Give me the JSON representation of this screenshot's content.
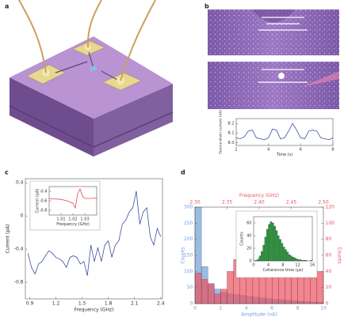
{
  "panel_labels": [
    "a",
    "b",
    "c",
    "d"
  ],
  "chart_data": [
    {
      "type": "line",
      "xlabel": "Time (s)",
      "ylabel": "Source-drain current (nA)",
      "color": "#3a4fa0",
      "x": [
        2,
        2.25,
        2.5,
        2.75,
        3,
        3.25,
        3.5,
        3.75,
        4,
        4.25,
        4.5,
        4.75,
        5,
        5.25,
        5.5,
        5.75,
        6,
        6.25,
        6.5,
        6.75,
        7,
        7.25,
        7.5,
        7.75,
        8
      ],
      "values": [
        8.05,
        8.04,
        8.06,
        8.12,
        8.13,
        8.05,
        8.04,
        8.03,
        8.05,
        8.14,
        8.13,
        8.04,
        8.05,
        8.12,
        8.2,
        8.13,
        8.05,
        8.04,
        8.12,
        8.13,
        8.12,
        8.05,
        8.04,
        8.03,
        8.05
      ],
      "xlim": [
        2,
        8
      ],
      "xticks": [
        2,
        4,
        6,
        8
      ],
      "ylim": [
        7.97,
        8.25
      ],
      "yticks": [
        {
          "value": 8,
          "label": "8.0"
        },
        8.1,
        8.2
      ]
    },
    {
      "type": "line",
      "xlabel": "Frequency (GHz)",
      "ylabel": "Current (pA)",
      "color": "#3a4fa0",
      "x": [
        0.88,
        0.92,
        0.96,
        1.0,
        1.04,
        1.08,
        1.12,
        1.16,
        1.2,
        1.24,
        1.28,
        1.32,
        1.36,
        1.4,
        1.44,
        1.48,
        1.52,
        1.56,
        1.6,
        1.64,
        1.68,
        1.72,
        1.76,
        1.8,
        1.84,
        1.88,
        1.92,
        1.96,
        2.0,
        2.04,
        2.08,
        2.12,
        2.16,
        2.2,
        2.24,
        2.28,
        2.32,
        2.36,
        2.4
      ],
      "values": [
        -0.45,
        -0.62,
        -0.7,
        -0.58,
        -0.55,
        -0.48,
        -0.42,
        -0.45,
        -0.5,
        -0.52,
        -0.55,
        -0.62,
        -0.5,
        -0.48,
        -0.5,
        -0.58,
        -0.55,
        -0.72,
        -0.35,
        -0.55,
        -0.38,
        -0.55,
        -0.35,
        -0.3,
        -0.5,
        -0.35,
        -0.3,
        -0.1,
        -0.05,
        0.05,
        0.1,
        0.3,
        -0.1,
        0.05,
        0.1,
        -0.25,
        -0.35,
        -0.15,
        -0.25
      ],
      "xlim": [
        0.85,
        2.42
      ],
      "xticks": [
        0.9,
        1.2,
        1.5,
        1.8,
        2.1,
        2.4
      ],
      "ylim": [
        -1.0,
        0.45
      ],
      "yticks": [
        -0.8,
        -0.4,
        0,
        0.4
      ]
    },
    {
      "type": "line",
      "xlabel": "Frequency (GHz)",
      "ylabel": "Current (pA)",
      "color": "#e8434f",
      "x": [
        1.0,
        1.005,
        1.01,
        1.015,
        1.02,
        1.022,
        1.024,
        1.026,
        1.028,
        1.03,
        1.035,
        1.04
      ],
      "values": [
        -0.55,
        -0.56,
        -0.57,
        -0.6,
        -0.65,
        -0.75,
        -0.45,
        -0.35,
        -0.5,
        -0.55,
        -0.55,
        -0.54
      ],
      "xlim": [
        1.0,
        1.04
      ],
      "xticks": [
        1.01,
        1.02,
        1.03
      ],
      "ylim": [
        -0.9,
        -0.3
      ],
      "yticks": [
        -0.8,
        -0.6,
        -0.4
      ]
    },
    {
      "type": "histogram",
      "xlabel": "Amplitude (nA)",
      "x2label": "Frequency (GHz)",
      "ylabel": "Counts",
      "y2label": "Counts",
      "series": [
        {
          "color": "#6f9fd8",
          "bins": [
            0,
            0.5,
            1,
            1.5,
            2,
            2.5,
            3,
            3.5,
            4,
            4.5,
            5,
            5.5,
            6,
            6.5,
            7,
            7.5,
            8,
            8.5,
            9,
            9.5,
            10
          ],
          "values": [
            300,
            115,
            60,
            45,
            35,
            30,
            28,
            25,
            22,
            20,
            18,
            15,
            13,
            12,
            10,
            9,
            7,
            6,
            5,
            4
          ]
        },
        {
          "color": "#f0505f",
          "axis": "y2",
          "xaxis": "x2",
          "bins": [
            2.3,
            2.31,
            2.32,
            2.33,
            2.34,
            2.35,
            2.36,
            2.37,
            2.38,
            2.39,
            2.4,
            2.41,
            2.42,
            2.43,
            2.44,
            2.45,
            2.46,
            2.47,
            2.48,
            2.49,
            2.5
          ],
          "values": [
            38,
            30,
            25,
            12,
            18,
            40,
            55,
            50,
            48,
            52,
            58,
            62,
            48,
            38,
            42,
            55,
            45,
            35,
            50,
            40
          ]
        }
      ],
      "xlim": [
        0,
        10
      ],
      "xticks": [
        0,
        2,
        4,
        6,
        8,
        10
      ],
      "x2lim": [
        2.3,
        2.5
      ],
      "x2ticks": [
        {
          "value": 2.3,
          "label": "2.30"
        },
        2.35,
        {
          "value": 2.4,
          "label": "2.40"
        },
        2.45,
        {
          "value": 2.5,
          "label": "2.50"
        }
      ],
      "ylim": [
        0,
        300
      ],
      "yticks": [
        0,
        50,
        100,
        150,
        200,
        250,
        300
      ],
      "y2lim": [
        0,
        120
      ],
      "y2ticks": [
        0,
        20,
        40,
        60,
        80,
        100,
        120
      ]
    },
    {
      "type": "histogram",
      "xlabel": "Coherence time (µs)",
      "ylabel": "Counts",
      "color": "#2e9a40",
      "bins": [
        0,
        0.5,
        1,
        1.5,
        2,
        2.5,
        3,
        3.5,
        4,
        4.5,
        5,
        5.5,
        6,
        6.5,
        7,
        7.5,
        8,
        8.5,
        9,
        9.5,
        10,
        10.5,
        11,
        11.5,
        12,
        12.5,
        13,
        13.5,
        14,
        14.5,
        15,
        15.5,
        16
      ],
      "values": [
        0,
        1,
        3,
        8,
        15,
        25,
        38,
        50,
        58,
        62,
        60,
        55,
        48,
        40,
        34,
        28,
        22,
        18,
        14,
        10,
        8,
        6,
        5,
        3,
        2,
        2,
        1,
        1,
        1,
        0,
        0,
        1
      ],
      "xlim": [
        0,
        16
      ],
      "xticks": [
        0,
        4,
        8,
        12,
        16
      ],
      "ylim": [
        0,
        70
      ],
      "yticks": [
        0,
        20,
        40,
        60
      ]
    }
  ]
}
